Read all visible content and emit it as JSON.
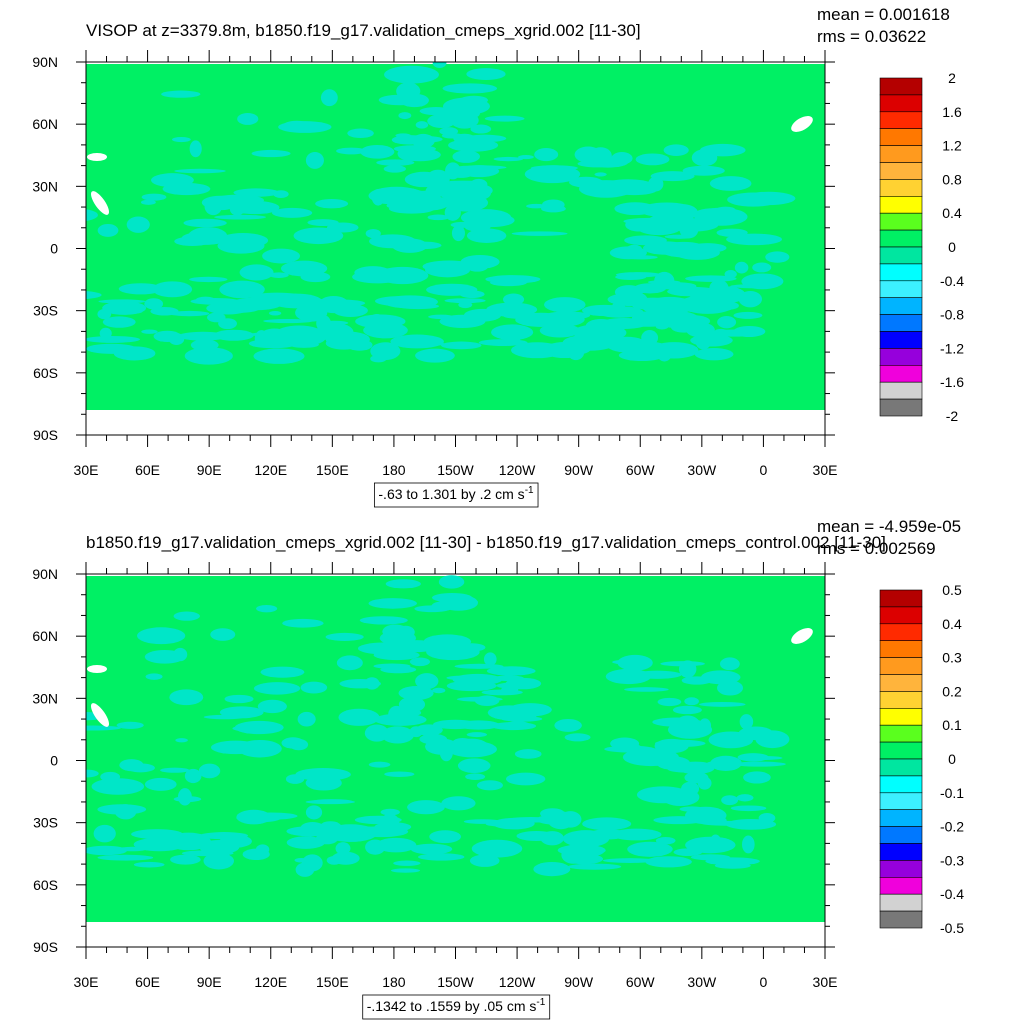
{
  "panels": [
    {
      "title": "VISOP at z=3379.8m, b1850.f19_g17.validation_cmeps_xgrid.002 [11-30]",
      "mean": "mean = 0.001618",
      "rms": "rms = 0.03622",
      "lat_labels": [
        "90N",
        "60N",
        "30N",
        "0",
        "30S",
        "60S",
        "90S"
      ],
      "lon_labels": [
        "30E",
        "60E",
        "90E",
        "120E",
        "150E",
        "180",
        "150W",
        "120W",
        "90W",
        "60W",
        "30W",
        "0",
        "30E"
      ],
      "colorbar": {
        "levels": [
          2,
          1.6,
          1.2,
          0.8,
          0.4,
          0,
          -0.4,
          -0.8,
          -1.2,
          -1.6,
          -2
        ],
        "colors": [
          "#b40000",
          "#dc0000",
          "#ff2a00",
          "#ff7800",
          "#ff9a1e",
          "#ffb43c",
          "#ffd232",
          "#ffff00",
          "#5aff1e",
          "#00f064",
          "#00e6a0",
          "#00ffff",
          "#3cf0ff",
          "#00b4ff",
          "#0078ff",
          "#0000ff",
          "#9600dc",
          "#f000dc",
          "#d2d2d2",
          "#787878"
        ]
      },
      "info": "-.63 to 1.301 by .2 cm s",
      "info_exp": "-1"
    },
    {
      "title": "b1850.f19_g17.validation_cmeps_xgrid.002 [11-30] - b1850.f19_g17.validation_cmeps_control.002 [11-30]",
      "mean": "mean = -4.959e-05",
      "rms": "rms = 0.002569",
      "lat_labels": [
        "90N",
        "60N",
        "30N",
        "0",
        "30S",
        "60S",
        "90S"
      ],
      "lon_labels": [
        "30E",
        "60E",
        "90E",
        "120E",
        "150E",
        "180",
        "150W",
        "120W",
        "90W",
        "60W",
        "30W",
        "0",
        "30E"
      ],
      "colorbar": {
        "levels": [
          0.5,
          0.4,
          0.3,
          0.2,
          0.1,
          0,
          -0.1,
          -0.2,
          -0.3,
          -0.4,
          -0.5
        ],
        "colors": [
          "#b40000",
          "#dc0000",
          "#ff2a00",
          "#ff7800",
          "#ff9a1e",
          "#ffb43c",
          "#ffd232",
          "#ffff00",
          "#5aff1e",
          "#00f064",
          "#00e6a0",
          "#00ffff",
          "#3cf0ff",
          "#00b4ff",
          "#0078ff",
          "#0000ff",
          "#9600dc",
          "#f000dc",
          "#d2d2d2",
          "#787878"
        ]
      },
      "info": "-.1342 to .1559 by .05 cm s",
      "info_exp": "-1"
    }
  ]
}
